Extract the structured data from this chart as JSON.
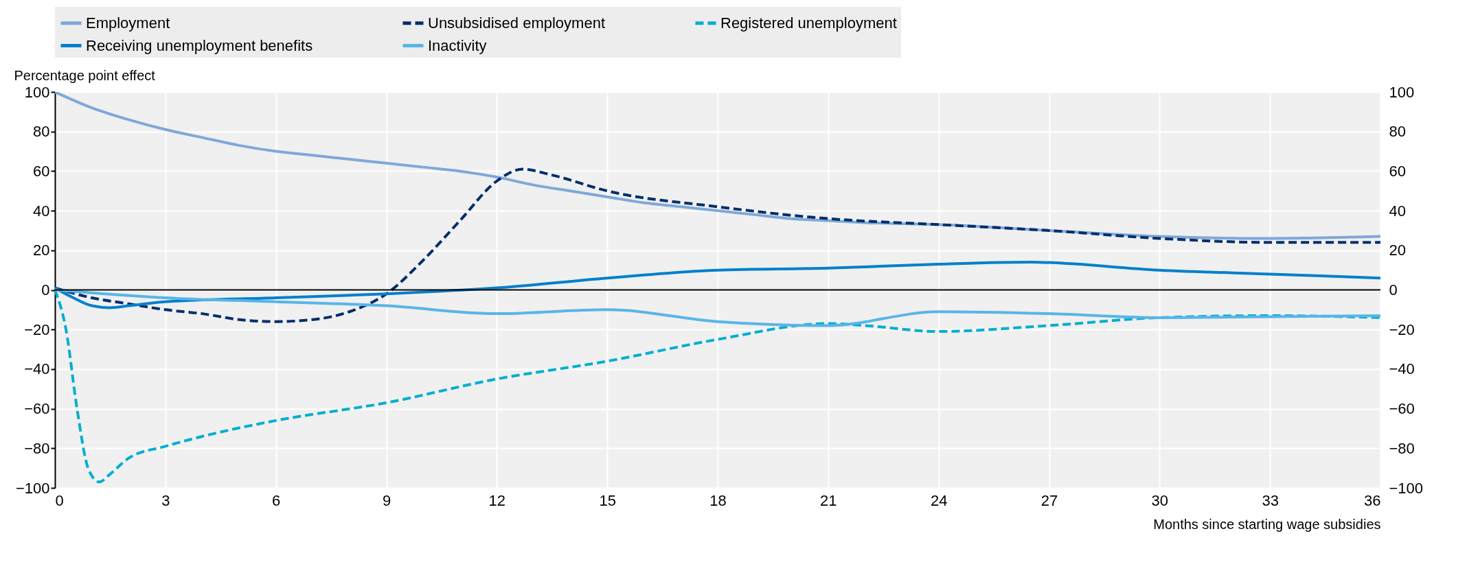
{
  "chart_data": {
    "type": "line",
    "ylabel": "Percentage point effect",
    "xlabel": "Months since starting wage subsidies",
    "xlim": [
      0,
      36
    ],
    "xticks": [
      0,
      3,
      6,
      9,
      12,
      15,
      18,
      21,
      24,
      27,
      30,
      33,
      36
    ],
    "ylim": [
      -100,
      100
    ],
    "yticks": [
      -100,
      -80,
      -60,
      -40,
      -20,
      0,
      20,
      40,
      60,
      80,
      100
    ],
    "y2lim": [
      -100,
      100
    ],
    "y2ticks": [
      -100,
      -80,
      -60,
      -40,
      -20,
      0,
      20,
      40,
      60,
      80,
      100
    ],
    "grid": true,
    "legend": "top",
    "ref_lines": [
      {
        "axis": "y",
        "value": 0,
        "color": "#000000"
      }
    ],
    "series": [
      {
        "name": "Employment",
        "color": "#7fa8d9",
        "line_style": "solid",
        "x": [
          0,
          1,
          2,
          3,
          4,
          5,
          6,
          7,
          8,
          9,
          10,
          11,
          12,
          13,
          14,
          15,
          16,
          17,
          18,
          19,
          20,
          21,
          22,
          24,
          27,
          30,
          33,
          36
        ],
        "values": [
          100,
          92,
          86,
          81,
          77,
          73,
          70,
          68,
          66,
          64,
          62,
          60,
          57,
          53,
          50,
          47,
          44,
          42,
          40,
          38,
          36,
          35,
          34,
          33,
          30,
          27,
          26,
          27
        ]
      },
      {
        "name": "Unsubsidised employment",
        "color": "#002f6c",
        "line_style": "dashed",
        "x": [
          0,
          1,
          2,
          3,
          4,
          5,
          6,
          7,
          8,
          9,
          10,
          11,
          12,
          12.7,
          13.5,
          15,
          18,
          21,
          24,
          27,
          30,
          33,
          36
        ],
        "values": [
          1,
          -4,
          -7,
          -10,
          -12,
          -15,
          -16,
          -15,
          -11,
          -2,
          15,
          35,
          55,
          61,
          58,
          50,
          42,
          36,
          33,
          30,
          26,
          24,
          24
        ]
      },
      {
        "name": "Registered unemployment",
        "color": "#00afcf",
        "line_style": "dashed",
        "x": [
          0,
          0.3,
          0.6,
          0.9,
          1.2,
          1.5,
          2,
          3,
          4,
          6,
          9,
          12,
          15,
          18,
          21,
          22,
          24,
          27,
          30,
          33,
          36
        ],
        "values": [
          0,
          -20,
          -60,
          -90,
          -97,
          -93,
          -85,
          -79,
          -74,
          -66,
          -57,
          -45,
          -36,
          -25,
          -17,
          -18,
          -21,
          -18,
          -14,
          -13,
          -14
        ]
      },
      {
        "name": "Receiving unemployment benefits",
        "color": "#0080cc",
        "line_style": "solid",
        "x": [
          0,
          0.5,
          1,
          1.5,
          2,
          3,
          6,
          9,
          12,
          15,
          18,
          21,
          24,
          26.5,
          30,
          33,
          36
        ],
        "values": [
          1,
          -4,
          -8,
          -9,
          -8,
          -6,
          -4,
          -2,
          1,
          6,
          10,
          11,
          13,
          14,
          10,
          8,
          6
        ]
      },
      {
        "name": "Inactivity",
        "color": "#58b5e8",
        "line_style": "solid",
        "x": [
          0,
          3,
          6,
          9,
          12,
          15,
          18,
          21,
          24,
          27,
          30,
          36
        ],
        "values": [
          0,
          -4,
          -6,
          -8,
          -12,
          -10,
          -16,
          -18,
          -11,
          -12,
          -14,
          -13
        ]
      }
    ]
  }
}
